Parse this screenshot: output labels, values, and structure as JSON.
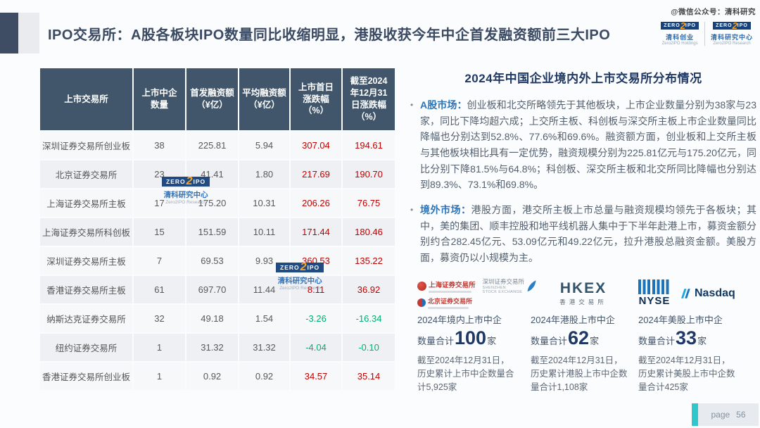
{
  "watermark_top": "@微信公众号：清科研究",
  "header": {
    "title": "IPO交易所：A股各板块IPO数量同比收缩明显，港股收获今年中企首发融资额前三大IPO"
  },
  "brand": {
    "zero": "ZERO",
    "two": "2",
    "ipo": "IPO",
    "holdings_cn": "清科创业",
    "holdings_en": "Zero2IPO Holdings",
    "research_cn": "清科研究中心",
    "research_en": "Zero2IPO Research"
  },
  "table": {
    "headers": [
      "上市交易所",
      "上市中企\n数量",
      "首发融资额\n（¥亿）",
      "平均融资额\n（¥亿）",
      "上市首日\n涨跌幅\n（%）",
      "截至2024\n年12月31\n日涨跌幅\n（%）"
    ],
    "rows": [
      {
        "exchange": "深圳证券交易所创业板",
        "count": "38",
        "total": "225.81",
        "avg": "5.94",
        "day1": "307.04",
        "ytd": "194.61"
      },
      {
        "exchange": "北京证券交易所",
        "count": "23",
        "total": "41.41",
        "avg": "1.80",
        "day1": "217.69",
        "ytd": "190.70"
      },
      {
        "exchange": "上海证券交易所主板",
        "count": "17",
        "total": "175.20",
        "avg": "10.31",
        "day1": "206.26",
        "ytd": "76.75"
      },
      {
        "exchange": "上海证券交易所科创板",
        "count": "15",
        "total": "151.59",
        "avg": "10.11",
        "day1": "171.44",
        "ytd": "180.46"
      },
      {
        "exchange": "深圳证券交易所主板",
        "count": "7",
        "total": "69.53",
        "avg": "9.93",
        "day1": "360.53",
        "ytd": "135.22"
      },
      {
        "exchange": "香港证券交易所主板",
        "count": "61",
        "total": "697.70",
        "avg": "11.44",
        "day1": "8.11",
        "ytd": "36.92"
      },
      {
        "exchange": "纳斯达克证券交易所",
        "count": "32",
        "total": "49.18",
        "avg": "1.54",
        "day1": "-3.26",
        "ytd": "-16.34"
      },
      {
        "exchange": "纽约证券交易所",
        "count": "1",
        "total": "31.32",
        "avg": "31.32",
        "day1": "-4.04",
        "ytd": "-0.10"
      },
      {
        "exchange": "香港证券交易所创业板",
        "count": "1",
        "total": "0.92",
        "avg": "0.92",
        "day1": "34.57",
        "ytd": "35.14"
      }
    ],
    "colors": {
      "positive": "#c00000",
      "negative": "#00b070",
      "header_bg": "#41566b"
    }
  },
  "right": {
    "title": "2024年中国企业境内外上市交易所分布情况",
    "bullets": [
      {
        "label": "A股市场：",
        "text": "创业板和北交所略领先于其他板块，上市企业数量分别为38家与23家，同比下降均超六成；上交所主板、科创板与深交所主板上市企业数量同比降幅也分别达到52.8%、77.6%和69.6%。融资额方面，创业板和上交所主板与其他板块相比具有一定优势，融资规模分别为225.81亿元与175.20亿元，同比分别下降81.5%与64.8%；科创板、深交所主板和北交所同比降幅也分别达到89.3%、73.1%和69.8%。"
      },
      {
        "label": "境外市场：",
        "text": "港股方面，港交所主板上市总量与融资规模均领先于各板块；其中，美的集团、顺丰控股和地平线机器人集中于下半年赴港上市，募资金额分别约合282.45亿元、53.09亿元和49.22亿元，拉升港股总融资金额。美股方面，募资仍以小规模为主。"
      }
    ],
    "exchanges": {
      "sse_cn": "上海证券交易所",
      "szse_cn": "深圳证券交易所",
      "szse_en": "SHENZHEN\nSTOCK EXCHANGE",
      "bse_cn": "北京证券交易所",
      "hkex": "HKEX",
      "hkex_cn": "香港交易所",
      "nyse": "NYSE",
      "nasdaq": "Nasdaq"
    },
    "stats": [
      {
        "line1": "2024年境内上市中企",
        "prefix": "数量合计",
        "big": "100",
        "suffix": "家",
        "note": "截至2024年12月31日，历史累计上市中企数量合计5,925家"
      },
      {
        "line1": "2024年港股上市中企",
        "prefix": "数量合计",
        "big": "62",
        "suffix": "家",
        "note": "截至2024年12月31日，历史累计港股上市中企数量合计1,108家"
      },
      {
        "line1": "2024年美股上市中企",
        "prefix": "数量合计",
        "big": "33",
        "suffix": "家",
        "note": "截至2024年12月31日，历史累计美股上市中企数量合计425家"
      }
    ]
  },
  "footer": {
    "page_label": "page",
    "page_number": "56"
  }
}
